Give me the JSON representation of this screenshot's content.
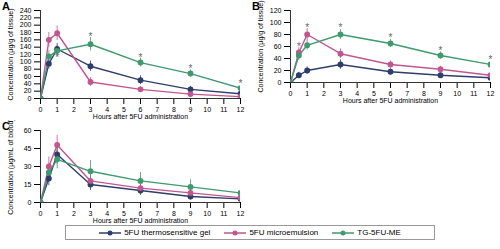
{
  "chart_data": [
    {
      "type": "line",
      "title": "A",
      "x_label": "Hours after 5FU administration",
      "y_label": "Concentration (µg/g of tissue)",
      "x": [
        0,
        0.5,
        1,
        3,
        6,
        9,
        12
      ],
      "xlim": [
        0,
        12
      ],
      "xticks": [
        0,
        1,
        2,
        3,
        4,
        5,
        6,
        7,
        8,
        9,
        10,
        11,
        12
      ],
      "ylim": [
        0,
        240
      ],
      "yticks": [
        0,
        20,
        40,
        60,
        80,
        100,
        120,
        140,
        160,
        180,
        200,
        220,
        240
      ],
      "legend": "bottom",
      "marker": "circle",
      "series": [
        {
          "name": "5FU thermosensitive gel",
          "color": "#2e3d6b",
          "values": [
            0,
            95,
            135,
            88,
            50,
            25,
            13
          ],
          "errors": [
            0,
            15,
            15,
            14,
            12,
            8,
            6
          ]
        },
        {
          "name": "5FU microemulsion",
          "color": "#c2568f",
          "values": [
            0,
            160,
            178,
            45,
            25,
            12,
            5
          ],
          "errors": [
            0,
            20,
            20,
            12,
            8,
            5,
            3
          ]
        },
        {
          "name": "TG-5FU-ME",
          "color": "#3f9a6e",
          "values": [
            0,
            115,
            130,
            148,
            98,
            68,
            28
          ],
          "errors": [
            0,
            15,
            15,
            18,
            12,
            10,
            10
          ]
        }
      ],
      "annotations": [
        {
          "x": 1,
          "y": 112,
          "text": "*"
        },
        {
          "x": 3,
          "y": 168,
          "text": "*"
        },
        {
          "x": 6,
          "y": 112,
          "text": "*"
        },
        {
          "x": 9,
          "y": 80,
          "text": "*"
        },
        {
          "x": 12,
          "y": 40,
          "text": "*"
        }
      ]
    },
    {
      "type": "line",
      "title": "B",
      "x_label": "Hours after 5FU administration",
      "y_label": "Concentration (µg/g of tissue)",
      "x": [
        0,
        0.5,
        1,
        3,
        6,
        9,
        12
      ],
      "xlim": [
        0,
        12
      ],
      "xticks": [
        0,
        1,
        2,
        3,
        4,
        5,
        6,
        7,
        8,
        9,
        10,
        11,
        12
      ],
      "ylim": [
        0,
        120
      ],
      "yticks": [
        0,
        20,
        40,
        60,
        80,
        100,
        120
      ],
      "legend": "bottom",
      "marker": "circle",
      "series": [
        {
          "name": "5FU thermosensitive gel",
          "color": "#2e3d6b",
          "values": [
            0,
            12,
            20,
            30,
            18,
            12,
            8
          ],
          "errors": [
            0,
            5,
            6,
            8,
            5,
            4,
            3
          ]
        },
        {
          "name": "5FU microemulsion",
          "color": "#c2568f",
          "values": [
            0,
            50,
            80,
            48,
            30,
            22,
            12
          ],
          "errors": [
            0,
            8,
            10,
            8,
            6,
            5,
            4
          ]
        },
        {
          "name": "TG-5FU-ME",
          "color": "#3f9a6e",
          "values": [
            0,
            45,
            62,
            80,
            65,
            45,
            30
          ],
          "errors": [
            0,
            8,
            8,
            8,
            7,
            6,
            5
          ]
        }
      ],
      "annotations": [
        {
          "x": 0.5,
          "y": 60,
          "text": "*"
        },
        {
          "x": 1,
          "y": 92,
          "text": "*"
        },
        {
          "x": 3,
          "y": 92,
          "text": "*"
        },
        {
          "x": 6,
          "y": 75,
          "text": "*"
        },
        {
          "x": 9,
          "y": 53,
          "text": "*"
        },
        {
          "x": 12,
          "y": 38,
          "text": "*"
        }
      ]
    },
    {
      "type": "line",
      "title": "C",
      "x_label": "Hours after 5FU administration",
      "y_label": "Concentration (µg/mL of blood)",
      "x": [
        0,
        0.5,
        1,
        3,
        6,
        9,
        12
      ],
      "xlim": [
        0,
        12
      ],
      "xticks": [
        0,
        1,
        2,
        3,
        4,
        5,
        6,
        7,
        8,
        9,
        10,
        11,
        12
      ],
      "ylim": [
        0,
        60
      ],
      "yticks": [
        0,
        15,
        30,
        45,
        60
      ],
      "legend": "bottom",
      "marker": "circle",
      "series": [
        {
          "name": "5FU thermosensitive gel",
          "color": "#2e3d6b",
          "values": [
            0,
            20,
            40,
            15,
            10,
            5,
            3
          ],
          "errors": [
            0,
            6,
            8,
            5,
            4,
            3,
            2
          ]
        },
        {
          "name": "5FU microemulsion",
          "color": "#c2568f",
          "values": [
            0,
            30,
            48,
            18,
            12,
            8,
            4
          ],
          "errors": [
            0,
            8,
            8,
            6,
            4,
            3,
            2
          ]
        },
        {
          "name": "TG-5FU-ME",
          "color": "#3f9a6e",
          "values": [
            0,
            25,
            36,
            26,
            18,
            13,
            8
          ],
          "errors": [
            0,
            7,
            8,
            9,
            7,
            6,
            5
          ]
        }
      ],
      "annotations": []
    }
  ]
}
